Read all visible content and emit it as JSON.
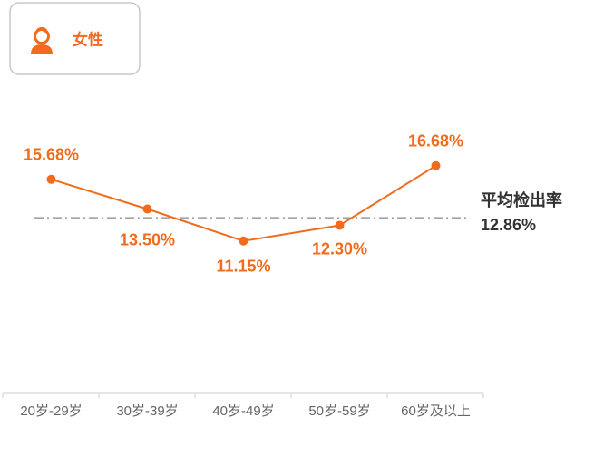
{
  "chart_data": {
    "type": "line",
    "categories": [
      "20岁-29岁",
      "30岁-39岁",
      "40岁-49岁",
      "50岁-59岁",
      "60岁及以上"
    ],
    "series": [
      {
        "name": "女性",
        "color": "#f26b1d",
        "values": [
          15.68,
          13.5,
          11.15,
          12.3,
          16.68
        ],
        "value_labels": [
          "15.68%",
          "13.50%",
          "11.15%",
          "12.30%",
          "16.68%"
        ]
      }
    ],
    "average": {
      "label": "平均检出率",
      "value": 12.86,
      "value_label": "12.86%"
    },
    "ylim": [
      0,
      20
    ]
  }
}
